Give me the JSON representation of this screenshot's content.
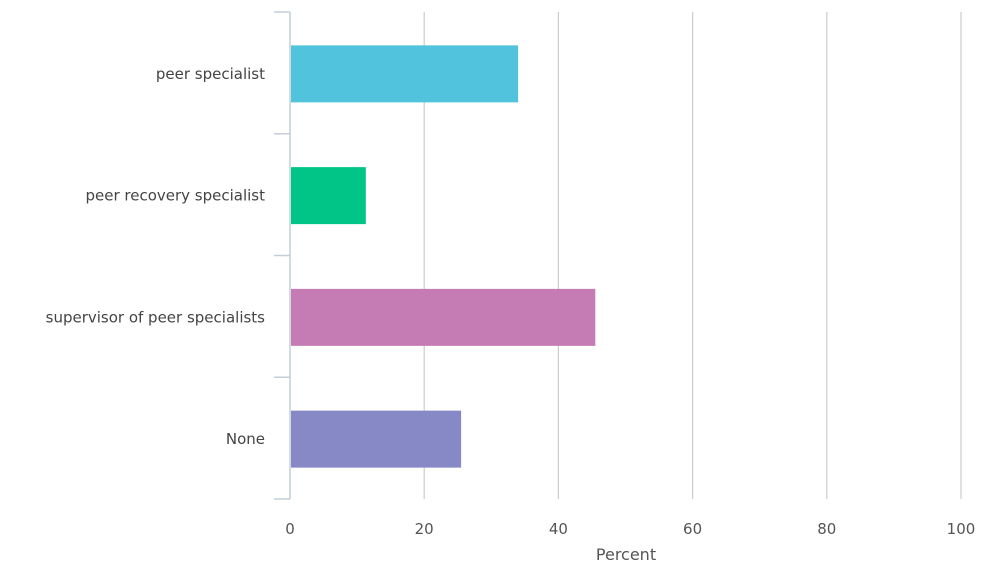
{
  "chart_data": {
    "type": "bar",
    "orientation": "horizontal",
    "categories": [
      "peer specialist",
      "peer recovery specialist",
      "supervisor of peer specialists",
      "None"
    ],
    "values": [
      34,
      11.3,
      45.5,
      25.5
    ],
    "colors": [
      "#52c3dd",
      "#00c586",
      "#c57bb3",
      "#8789c6"
    ],
    "xlabel": "Percent",
    "ylabel": "",
    "xlim": [
      0,
      100
    ],
    "xticks": [
      "0",
      "20",
      "40",
      "60",
      "80",
      "100"
    ],
    "grid": "vertical",
    "legend": "none"
  }
}
